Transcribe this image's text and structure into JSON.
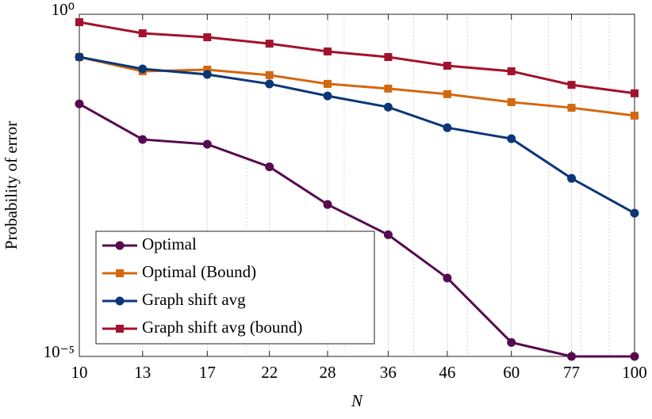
{
  "chart_data": {
    "type": "line",
    "xlabel": "N",
    "ylabel": "Probability of error",
    "x": [
      10,
      13,
      17,
      22,
      28,
      36,
      46,
      60,
      77,
      100
    ],
    "xlim": [
      10,
      100
    ],
    "xticks": [
      10,
      13,
      17,
      22,
      28,
      36,
      46,
      60,
      77,
      100
    ],
    "ylim": [
      1e-05,
      1
    ],
    "yticks": [
      {
        "value": 1e-05,
        "label": "10⁻⁵"
      },
      {
        "value": 1,
        "label": "10⁰"
      }
    ],
    "xscale": "log",
    "yscale": "log",
    "grid": true,
    "legend": "lower left",
    "series": [
      {
        "name": "Optimal",
        "color": "#560b4f",
        "marker": "circle",
        "values": [
          0.049,
          0.0148,
          0.0126,
          0.0059,
          0.00166,
          0.0006,
          0.00014,
          1.6e-05,
          1e-05,
          1e-05
        ]
      },
      {
        "name": "Optimal (Bound)",
        "color": "#d2680f",
        "marker": "square",
        "values": [
          0.237,
          0.147,
          0.155,
          0.129,
          0.096,
          0.082,
          0.068,
          0.052,
          0.043,
          0.033
        ]
      },
      {
        "name": "Graph shift avg",
        "color": "#0b3778",
        "marker": "circle",
        "values": [
          0.237,
          0.159,
          0.132,
          0.096,
          0.064,
          0.044,
          0.022,
          0.0152,
          0.004,
          0.00124
        ]
      },
      {
        "name": "Graph shift avg (bound)",
        "color": "#a3122c",
        "marker": "square",
        "values": [
          0.766,
          0.527,
          0.461,
          0.372,
          0.286,
          0.237,
          0.177,
          0.147,
          0.093,
          0.07
        ]
      }
    ]
  }
}
